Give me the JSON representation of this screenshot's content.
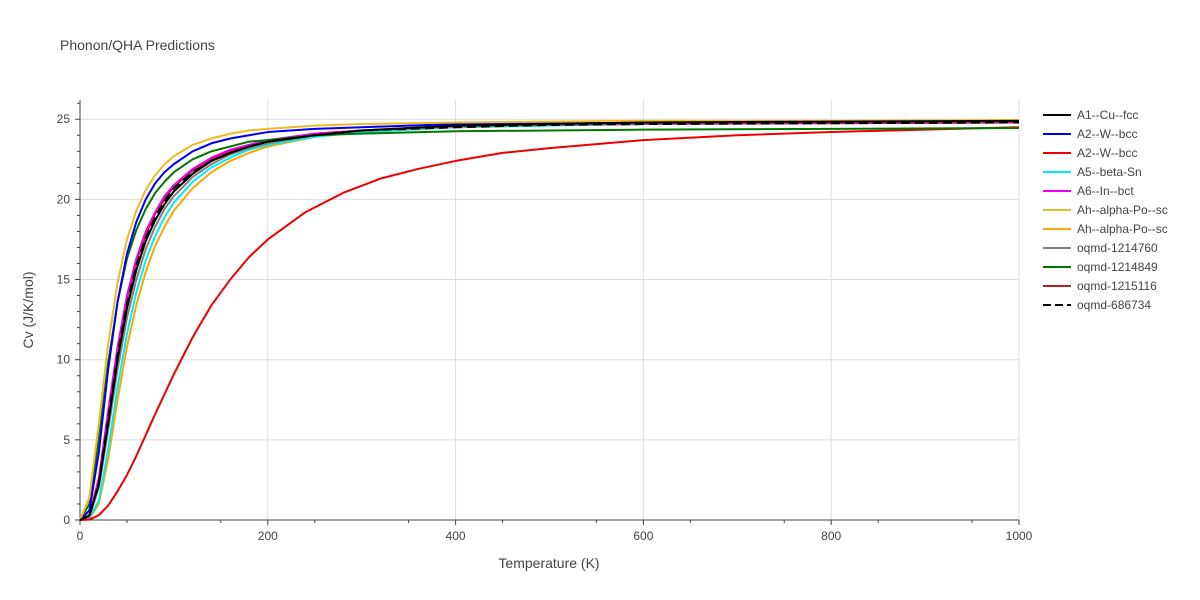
{
  "chart_data": {
    "type": "line",
    "title": "Phonon/QHA Predictions",
    "xlabel": "Temperature (K)",
    "ylabel": "Cv (J/K/mol)",
    "xlim": [
      0,
      1000
    ],
    "ylim": [
      0,
      26.2
    ],
    "xticks": [
      0,
      200,
      400,
      600,
      800,
      1000
    ],
    "yticks": [
      0,
      5,
      10,
      15,
      20,
      25
    ],
    "grid": true,
    "legend_position": "right",
    "series": [
      {
        "name": "A1--Cu--fcc",
        "color": "#000000",
        "dash": "solid",
        "points": [
          [
            0,
            0
          ],
          [
            10,
            0.3
          ],
          [
            20,
            2.2
          ],
          [
            30,
            6.0
          ],
          [
            40,
            10.0
          ],
          [
            50,
            13.2
          ],
          [
            60,
            15.6
          ],
          [
            70,
            17.4
          ],
          [
            80,
            18.7
          ],
          [
            90,
            19.7
          ],
          [
            100,
            20.5
          ],
          [
            120,
            21.6
          ],
          [
            140,
            22.4
          ],
          [
            160,
            22.9
          ],
          [
            180,
            23.3
          ],
          [
            200,
            23.6
          ],
          [
            250,
            24.0
          ],
          [
            300,
            24.3
          ],
          [
            400,
            24.6
          ],
          [
            500,
            24.7
          ],
          [
            600,
            24.8
          ],
          [
            800,
            24.85
          ],
          [
            1000,
            24.9
          ]
        ]
      },
      {
        "name": "A2--W--bcc",
        "color": "#0000ee",
        "dash": "solid",
        "points": [
          [
            0,
            0
          ],
          [
            10,
            0.6
          ],
          [
            20,
            4.2
          ],
          [
            30,
            9.4
          ],
          [
            40,
            13.6
          ],
          [
            50,
            16.6
          ],
          [
            60,
            18.6
          ],
          [
            70,
            20.0
          ],
          [
            80,
            21.0
          ],
          [
            90,
            21.7
          ],
          [
            100,
            22.2
          ],
          [
            120,
            23.0
          ],
          [
            140,
            23.5
          ],
          [
            160,
            23.8
          ],
          [
            180,
            24.0
          ],
          [
            200,
            24.2
          ],
          [
            250,
            24.4
          ],
          [
            300,
            24.5
          ],
          [
            400,
            24.7
          ],
          [
            500,
            24.8
          ],
          [
            600,
            24.8
          ],
          [
            800,
            24.85
          ],
          [
            1000,
            24.9
          ]
        ]
      },
      {
        "name": "A2--W--bcc",
        "color": "#ee0000",
        "dash": "solid",
        "points": [
          [
            0,
            0
          ],
          [
            10,
            0.02
          ],
          [
            20,
            0.3
          ],
          [
            30,
            0.9
          ],
          [
            40,
            1.8
          ],
          [
            50,
            2.8
          ],
          [
            60,
            4.0
          ],
          [
            70,
            5.3
          ],
          [
            80,
            6.6
          ],
          [
            100,
            9.1
          ],
          [
            120,
            11.4
          ],
          [
            140,
            13.4
          ],
          [
            160,
            15.0
          ],
          [
            180,
            16.4
          ],
          [
            200,
            17.5
          ],
          [
            240,
            19.2
          ],
          [
            280,
            20.4
          ],
          [
            320,
            21.3
          ],
          [
            360,
            21.9
          ],
          [
            400,
            22.4
          ],
          [
            450,
            22.9
          ],
          [
            500,
            23.2
          ],
          [
            600,
            23.7
          ],
          [
            700,
            24.0
          ],
          [
            800,
            24.2
          ],
          [
            900,
            24.35
          ],
          [
            1000,
            24.5
          ]
        ]
      },
      {
        "name": "A5--beta-Sn",
        "color": "#00eeee",
        "dash": "solid",
        "points": [
          [
            0,
            0
          ],
          [
            10,
            0.1
          ],
          [
            20,
            1.2
          ],
          [
            30,
            4.4
          ],
          [
            40,
            8.3
          ],
          [
            50,
            11.6
          ],
          [
            60,
            14.2
          ],
          [
            70,
            16.2
          ],
          [
            80,
            17.7
          ],
          [
            90,
            18.9
          ],
          [
            100,
            19.8
          ],
          [
            120,
            21.1
          ],
          [
            140,
            22.0
          ],
          [
            160,
            22.6
          ],
          [
            180,
            23.1
          ],
          [
            200,
            23.4
          ],
          [
            250,
            23.9
          ],
          [
            300,
            24.2
          ],
          [
            400,
            24.5
          ],
          [
            500,
            24.6
          ],
          [
            600,
            24.7
          ],
          [
            800,
            24.8
          ],
          [
            1000,
            24.85
          ]
        ]
      },
      {
        "name": "A6--In--bct",
        "color": "#ee00ee",
        "dash": "solid",
        "points": [
          [
            0,
            0
          ],
          [
            10,
            0.3
          ],
          [
            20,
            2.6
          ],
          [
            30,
            6.8
          ],
          [
            40,
            10.8
          ],
          [
            50,
            14.0
          ],
          [
            60,
            16.3
          ],
          [
            70,
            18.0
          ],
          [
            80,
            19.2
          ],
          [
            90,
            20.2
          ],
          [
            100,
            20.9
          ],
          [
            120,
            21.9
          ],
          [
            140,
            22.6
          ],
          [
            160,
            23.1
          ],
          [
            180,
            23.4
          ],
          [
            200,
            23.7
          ],
          [
            250,
            24.1
          ],
          [
            300,
            24.3
          ],
          [
            400,
            24.6
          ],
          [
            500,
            24.7
          ],
          [
            600,
            24.75
          ],
          [
            800,
            24.8
          ],
          [
            1000,
            24.85
          ]
        ]
      },
      {
        "name": "Ah--alpha-Po--sc",
        "color": "#eebb22",
        "dash": "solid",
        "points": [
          [
            0,
            0
          ],
          [
            10,
            1.4
          ],
          [
            20,
            6.0
          ],
          [
            30,
            11.0
          ],
          [
            40,
            14.8
          ],
          [
            50,
            17.5
          ],
          [
            60,
            19.3
          ],
          [
            70,
            20.6
          ],
          [
            80,
            21.5
          ],
          [
            90,
            22.2
          ],
          [
            100,
            22.7
          ],
          [
            120,
            23.4
          ],
          [
            140,
            23.8
          ],
          [
            160,
            24.1
          ],
          [
            180,
            24.3
          ],
          [
            200,
            24.4
          ],
          [
            250,
            24.6
          ],
          [
            300,
            24.7
          ],
          [
            400,
            24.8
          ],
          [
            500,
            24.85
          ],
          [
            600,
            24.9
          ],
          [
            800,
            24.9
          ],
          [
            1000,
            24.95
          ]
        ]
      },
      {
        "name": "Ah--alpha-Po--sc",
        "color": "#ffa500",
        "dash": "solid",
        "points": [
          [
            0,
            0
          ],
          [
            10,
            0.08
          ],
          [
            20,
            1.0
          ],
          [
            30,
            3.8
          ],
          [
            40,
            7.5
          ],
          [
            50,
            10.8
          ],
          [
            60,
            13.4
          ],
          [
            70,
            15.5
          ],
          [
            80,
            17.1
          ],
          [
            90,
            18.3
          ],
          [
            100,
            19.3
          ],
          [
            120,
            20.7
          ],
          [
            140,
            21.7
          ],
          [
            160,
            22.4
          ],
          [
            180,
            22.9
          ],
          [
            200,
            23.3
          ],
          [
            250,
            23.9
          ],
          [
            300,
            24.2
          ],
          [
            400,
            24.5
          ],
          [
            500,
            24.65
          ],
          [
            600,
            24.7
          ],
          [
            800,
            24.8
          ],
          [
            1000,
            24.85
          ]
        ]
      },
      {
        "name": "oqmd-1214760",
        "color": "#808080",
        "dash": "solid",
        "points": [
          [
            0,
            0
          ],
          [
            10,
            0.2
          ],
          [
            20,
            2.0
          ],
          [
            30,
            5.6
          ],
          [
            40,
            9.4
          ],
          [
            50,
            12.6
          ],
          [
            60,
            15.0
          ],
          [
            70,
            16.9
          ],
          [
            80,
            18.3
          ],
          [
            90,
            19.4
          ],
          [
            100,
            20.2
          ],
          [
            120,
            21.4
          ],
          [
            140,
            22.2
          ],
          [
            160,
            22.8
          ],
          [
            180,
            23.2
          ],
          [
            200,
            23.5
          ],
          [
            250,
            24.0
          ],
          [
            300,
            24.3
          ],
          [
            400,
            24.55
          ],
          [
            500,
            24.65
          ],
          [
            600,
            24.7
          ],
          [
            800,
            24.8
          ],
          [
            1000,
            24.85
          ]
        ]
      },
      {
        "name": "oqmd-1214849",
        "color": "#007700",
        "dash": "solid",
        "points": [
          [
            0,
            0
          ],
          [
            10,
            1.0
          ],
          [
            20,
            5.0
          ],
          [
            30,
            9.8
          ],
          [
            40,
            13.6
          ],
          [
            50,
            16.3
          ],
          [
            60,
            18.1
          ],
          [
            70,
            19.4
          ],
          [
            80,
            20.4
          ],
          [
            90,
            21.1
          ],
          [
            100,
            21.7
          ],
          [
            120,
            22.5
          ],
          [
            140,
            23.0
          ],
          [
            160,
            23.3
          ],
          [
            180,
            23.6
          ],
          [
            200,
            23.7
          ],
          [
            250,
            24.0
          ],
          [
            300,
            24.1
          ],
          [
            400,
            24.25
          ],
          [
            500,
            24.3
          ],
          [
            600,
            24.35
          ],
          [
            800,
            24.4
          ],
          [
            1000,
            24.45
          ]
        ]
      },
      {
        "name": "oqmd-1215116",
        "color": "#b22222",
        "dash": "solid",
        "points": [
          [
            0,
            0
          ],
          [
            10,
            0.3
          ],
          [
            20,
            2.5
          ],
          [
            30,
            6.6
          ],
          [
            40,
            10.6
          ],
          [
            50,
            13.8
          ],
          [
            60,
            16.1
          ],
          [
            70,
            17.8
          ],
          [
            80,
            19.1
          ],
          [
            90,
            20.0
          ],
          [
            100,
            20.8
          ],
          [
            120,
            21.8
          ],
          [
            140,
            22.5
          ],
          [
            160,
            23.0
          ],
          [
            180,
            23.4
          ],
          [
            200,
            23.6
          ],
          [
            250,
            24.1
          ],
          [
            300,
            24.3
          ],
          [
            400,
            24.55
          ],
          [
            500,
            24.65
          ],
          [
            600,
            24.7
          ],
          [
            800,
            24.75
          ],
          [
            1000,
            24.8
          ]
        ]
      },
      {
        "name": "oqmd-686734",
        "color": "#000000",
        "dash": "dashed",
        "points": [
          [
            0,
            0
          ],
          [
            10,
            0.25
          ],
          [
            20,
            2.3
          ],
          [
            30,
            6.3
          ],
          [
            40,
            10.3
          ],
          [
            50,
            13.5
          ],
          [
            60,
            15.9
          ],
          [
            70,
            17.6
          ],
          [
            80,
            18.9
          ],
          [
            90,
            19.9
          ],
          [
            100,
            20.7
          ],
          [
            120,
            21.7
          ],
          [
            140,
            22.4
          ],
          [
            160,
            22.9
          ],
          [
            180,
            23.3
          ],
          [
            200,
            23.6
          ],
          [
            250,
            24.0
          ],
          [
            300,
            24.3
          ],
          [
            400,
            24.5
          ],
          [
            500,
            24.65
          ],
          [
            600,
            24.7
          ],
          [
            800,
            24.75
          ],
          [
            1000,
            24.8
          ]
        ]
      }
    ]
  }
}
